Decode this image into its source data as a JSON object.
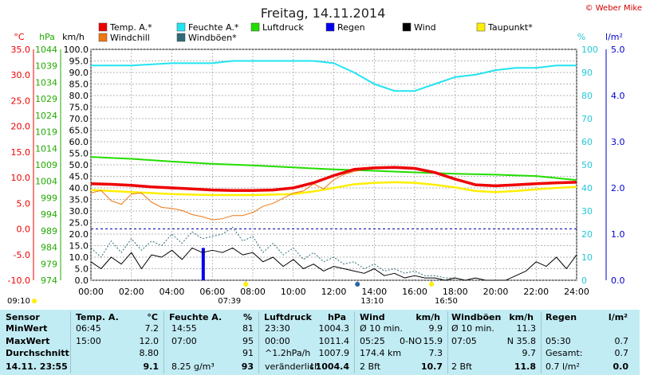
{
  "title": "Freitag, 14.11.2014",
  "copyright": "© Weber Mike",
  "colors": {
    "temp": "#ee0000",
    "humidity": "#22e4f0",
    "pressure": "#22dd00",
    "rain": "#0000ee",
    "wind": "#000000",
    "dewpoint": "#ffee00",
    "windchill": "#ee7711",
    "gust": "#2e6c78",
    "background": "#ffffff",
    "stats_bg": "#c2ecf4"
  },
  "legend": [
    {
      "label": "Temp. A.*",
      "color": "#ee0000"
    },
    {
      "label": "Feuchte A.*",
      "color": "#22e4f0"
    },
    {
      "label": "Luftdruck",
      "color": "#22dd00"
    },
    {
      "label": "Regen",
      "color": "#0000ee"
    },
    {
      "label": "Wind",
      "color": "#000000"
    },
    {
      "label": "Taupunkt*",
      "color": "#ffee00"
    },
    {
      "label": "Windchill",
      "color": "#ee7711"
    },
    {
      "label": "Windböen*",
      "color": "#2e6c78"
    }
  ],
  "chart_data": {
    "type": "line",
    "title": "Freitag, 14.11.2014",
    "x_unit": "hours",
    "x_ticks": [
      "00:00",
      "02:00",
      "04:00",
      "06:00",
      "08:00",
      "10:00",
      "12:00",
      "14:00",
      "16:00",
      "18:00",
      "20:00",
      "22:00",
      "24:00"
    ],
    "axes": {
      "temperature": {
        "label": "°C",
        "range": [
          -10,
          35
        ],
        "ticks": [
          "35.0",
          "30.0",
          "25.0",
          "20.0",
          "15.0",
          "10.0",
          "5.0",
          "0.0",
          "-5.0",
          "-10.0"
        ]
      },
      "pressure": {
        "label": "hPa",
        "range": [
          974,
          1044
        ],
        "ticks": [
          "1044",
          "1039",
          "1034",
          "1029",
          "1024",
          "1019",
          "1014",
          "1009",
          "1004",
          "999",
          "994",
          "989",
          "984",
          "979",
          "974"
        ]
      },
      "wind": {
        "label": "km/h",
        "range": [
          0,
          100
        ],
        "ticks": [
          "100.0",
          "95.0",
          "90.0",
          "85.0",
          "80.0",
          "75.0",
          "70.0",
          "65.0",
          "60.0",
          "55.0",
          "50.0",
          "45.0",
          "40.0",
          "35.0",
          "30.0",
          "25.0",
          "20.0",
          "15.0",
          "10.0",
          "5.0",
          "0.0"
        ]
      },
      "humidity": {
        "label": "%",
        "range": [
          0,
          100
        ],
        "ticks": [
          "100",
          "90",
          "80",
          "70",
          "60",
          "50",
          "40",
          "30",
          "20",
          "10",
          "0"
        ]
      },
      "rain": {
        "label": "l/m²",
        "range": [
          0,
          5
        ],
        "ticks": [
          "5.0",
          "4.0",
          "3.0",
          "2.0",
          "1.0",
          "0.0"
        ]
      }
    },
    "grid": true,
    "series": [
      {
        "name": "Temp. A.*",
        "axis": "temperature",
        "x": [
          0,
          1,
          2,
          3,
          4,
          5,
          6,
          7,
          8,
          9,
          10,
          11,
          12,
          12.5,
          13,
          14,
          15,
          16,
          17,
          18,
          19,
          20,
          21,
          22,
          23,
          24
        ],
        "y": [
          8.8,
          8.7,
          8.5,
          8.2,
          8.0,
          7.8,
          7.6,
          7.5,
          7.5,
          7.6,
          8.0,
          9.0,
          10.4,
          11.0,
          11.6,
          11.9,
          12.0,
          11.8,
          11.0,
          9.7,
          8.6,
          8.4,
          8.6,
          8.8,
          9.0,
          9.1
        ]
      },
      {
        "name": "Feuchte A.*",
        "axis": "humidity",
        "x": [
          0,
          2,
          4,
          6,
          7,
          8,
          10,
          11,
          12,
          13,
          14,
          15,
          16,
          17,
          18,
          19,
          20,
          21,
          22,
          23,
          24
        ],
        "y": [
          93,
          93,
          94,
          94,
          95,
          95,
          95,
          95,
          94,
          90,
          85,
          82,
          82,
          85,
          88,
          89,
          91,
          92,
          92,
          93,
          93
        ]
      },
      {
        "name": "Luftdruck",
        "axis": "pressure",
        "x": [
          0,
          2,
          4,
          6,
          8,
          10,
          12,
          13,
          14,
          16,
          18,
          20,
          22,
          24
        ],
        "y": [
          1011.4,
          1010.8,
          1010.0,
          1009.3,
          1008.8,
          1008.2,
          1007.6,
          1007.4,
          1007.2,
          1006.7,
          1006.3,
          1006.0,
          1005.6,
          1004.4
        ]
      },
      {
        "name": "Taupunkt*",
        "axis": "temperature",
        "x": [
          0,
          2,
          4,
          6,
          8,
          10,
          11,
          12,
          13,
          14,
          15,
          16,
          17,
          18,
          19,
          20,
          21,
          22,
          23,
          24
        ],
        "y": [
          7.6,
          7.2,
          6.8,
          6.6,
          6.6,
          6.8,
          7.3,
          8.0,
          8.7,
          9.0,
          9.1,
          9.0,
          8.6,
          8.1,
          7.4,
          7.2,
          7.4,
          7.7,
          8.0,
          8.2
        ]
      },
      {
        "name": "Windchill",
        "axis": "temperature",
        "x": [
          0,
          0.5,
          1,
          1.5,
          2,
          2.5,
          3,
          3.5,
          4,
          4.5,
          5,
          5.5,
          6,
          6.5,
          7,
          7.5,
          8,
          8.5,
          9,
          9.5,
          10,
          10.5,
          11,
          11.5,
          12,
          12.5,
          13,
          13.5,
          14,
          15,
          16,
          17,
          18,
          19,
          20,
          21,
          22,
          23,
          24
        ],
        "y": [
          7.0,
          7.5,
          5.5,
          4.8,
          6.8,
          7.0,
          5.2,
          4.2,
          4.0,
          3.6,
          2.8,
          2.4,
          1.8,
          2.0,
          2.6,
          2.6,
          3.2,
          4.4,
          5.0,
          6.0,
          7.0,
          7.4,
          8.8,
          7.8,
          9.6,
          10.6,
          11.2,
          11.6,
          11.9,
          12.0,
          11.8,
          11.0,
          9.7,
          8.6,
          8.4,
          8.6,
          8.8,
          9.0,
          9.1
        ]
      },
      {
        "name": "Wind",
        "axis": "wind",
        "x": [
          0,
          0.5,
          1,
          1.5,
          2,
          2.5,
          3,
          3.5,
          4,
          4.5,
          5,
          5.5,
          6,
          6.5,
          7,
          7.5,
          8,
          8.5,
          9,
          9.5,
          10,
          10.5,
          11,
          11.5,
          12,
          12.5,
          13,
          13.5,
          14,
          14.5,
          15,
          15.5,
          16,
          16.5,
          17,
          17.5,
          18,
          18.5,
          19,
          19.5,
          20,
          20.5,
          21,
          21.5,
          22,
          22.5,
          23,
          23.5,
          24
        ],
        "y": [
          8,
          5,
          10,
          7,
          12,
          5,
          11,
          10,
          13,
          9,
          14,
          12,
          13,
          12,
          14,
          11,
          12,
          8,
          10,
          6,
          9,
          5,
          7,
          4,
          6,
          5,
          4,
          3,
          5,
          2,
          3,
          1,
          2,
          1,
          1,
          0,
          1,
          0,
          1,
          0,
          0,
          0,
          2,
          4,
          8,
          6,
          10,
          5,
          11
        ]
      },
      {
        "name": "Windböen*",
        "axis": "wind",
        "x": [
          0,
          0.5,
          1,
          1.5,
          2,
          2.5,
          3,
          3.5,
          4,
          4.5,
          5,
          5.5,
          6,
          6.5,
          7,
          7.5,
          8,
          8.5,
          9,
          9.5,
          10,
          10.5,
          11,
          11.5,
          12,
          12.5,
          13,
          13.5,
          14,
          14.5,
          15,
          15.5,
          16,
          16.5,
          17,
          17.5,
          18
        ],
        "y": [
          14,
          10,
          17,
          12,
          18,
          13,
          17,
          15,
          20,
          16,
          21,
          18,
          19,
          20,
          23,
          17,
          19,
          12,
          16,
          11,
          14,
          9,
          12,
          8,
          10,
          7,
          8,
          5,
          7,
          4,
          5,
          3,
          4,
          2,
          2,
          1,
          1
        ]
      },
      {
        "name": "Regen",
        "axis": "rain",
        "type": "bar",
        "x": [
          5.55
        ],
        "y": [
          0.7
        ]
      }
    ],
    "markers": [
      {
        "label": "09:10",
        "x": 0
      },
      {
        "label": "07:39",
        "x": 7.65
      },
      {
        "label": "13:10",
        "x": 13.17
      },
      {
        "label": "16:50",
        "x": 16.83
      }
    ]
  },
  "stats": {
    "headers": {
      "sensor": "Sensor",
      "temp": "Temp. A.",
      "temp_unit": "°C",
      "hum": "Feuchte A.",
      "hum_unit": "%",
      "press": "Luftdruck",
      "press_unit": "hPa",
      "wind": "Wind",
      "wind_unit": "km/h",
      "gust": "Windböen",
      "gust_unit": "km/h",
      "rain": "Regen",
      "rain_unit": "l/m²"
    },
    "rows": [
      {
        "label": "MinWert",
        "temp_time": "06:45",
        "temp_val": "7.2",
        "hum_time": "14:55",
        "hum_val": "81",
        "press_time": "23:30",
        "press_val": "1004.3",
        "wind_a": "Ø 10 min.",
        "wind_b": "",
        "wind_val": "9.9",
        "gust_a": "Ø 10 min.",
        "gust_val": "11.3",
        "rain_a": "",
        "rain_val": ""
      },
      {
        "label": "MaxWert",
        "temp_time": "15:00",
        "temp_val": "12.0",
        "hum_time": "07:00",
        "hum_val": "95",
        "press_time": "00:00",
        "press_val": "1011.4",
        "wind_a": "05:25",
        "wind_b": "0-NO",
        "wind_val": "15.9",
        "gust_a": "07:05",
        "gust_val": "N 35.8",
        "rain_a": "05:30",
        "rain_val": "0.7"
      },
      {
        "label": "Durchschnitt",
        "temp_time": "",
        "temp_val": "8.80",
        "hum_time": "",
        "hum_val": "91",
        "press_time": "^1.2hPa/h",
        "press_val": "1007.9",
        "wind_a": "174.4 km",
        "wind_b": "",
        "wind_val": "7.3",
        "gust_a": "",
        "gust_val": "9.7",
        "rain_a": "Gesamt:",
        "rain_val": "0.7"
      },
      {
        "label": "14.11. 23:55",
        "temp_time": "",
        "temp_val": "9.1",
        "hum_time": "8.25 g/m³",
        "hum_val": "93",
        "press_time": "veränderlich",
        "press_val": "↓1004.4",
        "wind_a": "2 Bft",
        "wind_b": "",
        "wind_val": "10.7",
        "gust_a": "2 Bft",
        "gust_val": "11.8",
        "rain_a": "0.7 l/m²",
        "rain_val": "0.0"
      }
    ]
  }
}
